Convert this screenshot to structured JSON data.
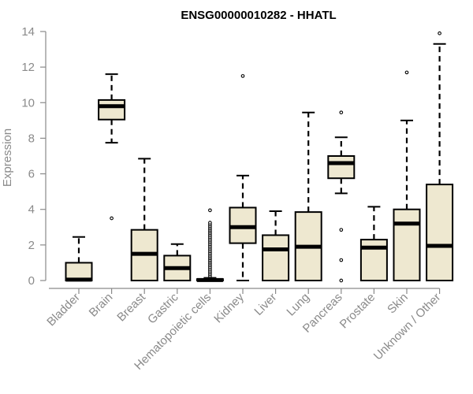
{
  "chart_data": {
    "type": "boxplot",
    "title": "ENSG00000010282 - HHATL",
    "xlabel": "",
    "ylabel": "Expression",
    "ylim": [
      0,
      14
    ],
    "yticks": [
      0,
      2,
      4,
      6,
      8,
      10,
      12,
      14
    ],
    "categories": [
      "Bladder",
      "Brain",
      "Breast",
      "Gastric",
      "Hematopoietic cells",
      "Kidney",
      "Liver",
      "Lung",
      "Pancreas",
      "Prostate",
      "Skin",
      "Unknown / Other"
    ],
    "boxes": [
      {
        "category": "Bladder",
        "min": 0.0,
        "q1": 0.0,
        "median": 0.05,
        "q3": 1.0,
        "max": 2.45,
        "outliers": []
      },
      {
        "category": "Brain",
        "min": 7.75,
        "q1": 9.05,
        "median": 9.8,
        "q3": 10.15,
        "max": 11.6,
        "outliers": [
          3.5
        ]
      },
      {
        "category": "Breast",
        "min": 0.0,
        "q1": 0.0,
        "median": 1.5,
        "q3": 2.85,
        "max": 6.85,
        "outliers": []
      },
      {
        "category": "Gastric",
        "min": 0.0,
        "q1": 0.0,
        "median": 0.7,
        "q3": 1.4,
        "max": 2.05,
        "outliers": []
      },
      {
        "category": "Hematopoietic cells",
        "min": 0.0,
        "q1": 0.0,
        "median": 0.03,
        "q3": 0.08,
        "max": 0.15,
        "outliers": [
          0.25,
          0.35,
          0.45,
          0.55,
          0.65,
          0.75,
          0.85,
          0.95,
          1.05,
          1.15,
          1.25,
          1.35,
          1.45,
          1.55,
          1.65,
          1.75,
          1.85,
          1.95,
          2.05,
          2.15,
          2.25,
          2.35,
          2.45,
          2.55,
          2.65,
          2.75,
          2.85,
          2.95,
          3.05,
          3.15,
          3.25,
          3.95
        ]
      },
      {
        "category": "Kidney",
        "min": 0.0,
        "q1": 2.1,
        "median": 3.0,
        "q3": 4.1,
        "max": 5.9,
        "outliers": [
          11.5
        ]
      },
      {
        "category": "Liver",
        "min": 0.0,
        "q1": 0.0,
        "median": 1.75,
        "q3": 2.55,
        "max": 3.9,
        "outliers": []
      },
      {
        "category": "Lung",
        "min": 0.0,
        "q1": 0.0,
        "median": 1.9,
        "q3": 3.85,
        "max": 9.45,
        "outliers": []
      },
      {
        "category": "Pancreas",
        "min": 4.9,
        "q1": 5.75,
        "median": 6.6,
        "q3": 7.0,
        "max": 8.05,
        "outliers": [
          9.45,
          2.85,
          1.15,
          0.0
        ]
      },
      {
        "category": "Prostate",
        "min": 0.0,
        "q1": 0.0,
        "median": 1.85,
        "q3": 2.3,
        "max": 4.15,
        "outliers": []
      },
      {
        "category": "Skin",
        "min": 0.0,
        "q1": 0.0,
        "median": 3.2,
        "q3": 4.0,
        "max": 9.0,
        "outliers": [
          11.7
        ]
      },
      {
        "category": "Unknown / Other",
        "min": 0.0,
        "q1": 0.0,
        "median": 1.95,
        "q3": 5.4,
        "max": 13.3,
        "outliers": [
          13.9
        ]
      }
    ],
    "colors": {
      "box_fill": "#eee8d0",
      "box_stroke": "#000000",
      "axis": "#8a8a8a",
      "text": "#8a8a8a",
      "title": "#000000"
    }
  }
}
